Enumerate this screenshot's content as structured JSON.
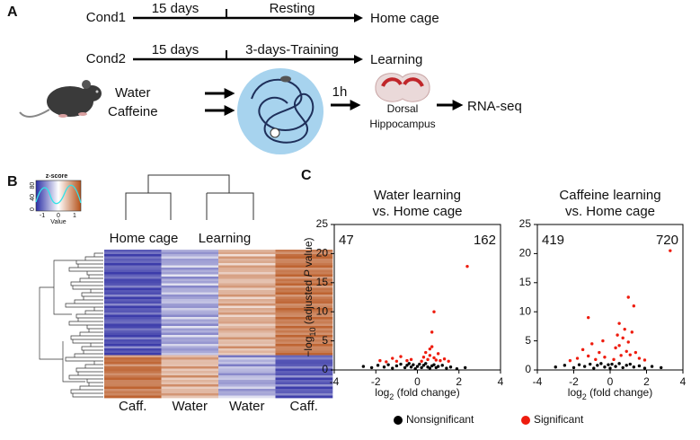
{
  "panel_a": {
    "label": "A",
    "cond1": "Cond1",
    "cond1_days": "15 days",
    "cond1_phase": "Resting",
    "cond1_outcome": "Home cage",
    "cond2": "Cond2",
    "cond2_days": "15 days",
    "cond2_phase": "3-days-Training",
    "cond2_outcome": "Learning",
    "water": "Water",
    "caffeine": "Caffeine",
    "delay": "1h",
    "region": [
      "Dorsal",
      "Hippocampus"
    ],
    "assay": "RNA-seq"
  },
  "panel_b": {
    "label": "B",
    "key_title": "z-score",
    "key_xlabel": "Value",
    "key_xticks": [
      -1,
      0,
      1
    ],
    "key_yticks": [
      0,
      40,
      80
    ],
    "groups": [
      "Home cage",
      "Learning"
    ],
    "columns": [
      "Caff.",
      "Water",
      "Water",
      "Caff."
    ]
  },
  "panel_c": {
    "label": "C",
    "legend": [
      "Nonsignificant",
      "Significant"
    ]
  },
  "chart_data": [
    {
      "type": "scatter",
      "title": [
        "Water learning",
        "vs. Home cage"
      ],
      "ylabel": [
        "−log",
        "10",
        " (adjusted ",
        "P",
        " value)"
      ],
      "xlabel": [
        "log",
        "2",
        " (fold change)"
      ],
      "annotations": [
        47,
        162
      ],
      "xlim": [
        -4,
        4
      ],
      "xticks": [
        -4,
        -2,
        0,
        2,
        4
      ],
      "ylim": [
        0,
        25
      ],
      "yticks": [
        0,
        5,
        10,
        15,
        20,
        25
      ],
      "series": [
        {
          "name": "Nonsignificant",
          "color": "#000000",
          "x": [
            -2.6,
            -2.2,
            -1.9,
            -1.6,
            -1.4,
            -1.2,
            -1.0,
            -0.8,
            -0.6,
            -0.5,
            -0.4,
            -0.3,
            -0.2,
            -0.1,
            0,
            0.1,
            0.2,
            0.3,
            0.4,
            0.5,
            0.6,
            0.7,
            0.8,
            0.9,
            1.0,
            1.2,
            1.4,
            1.6,
            1.9,
            2.3
          ],
          "values": [
            0.6,
            0.4,
            0.8,
            0.5,
            0.9,
            0.3,
            0.7,
            1.0,
            0.4,
            0.8,
            1.1,
            0.5,
            0.9,
            0.2,
            0.6,
            1.0,
            0.4,
            0.8,
            1.1,
            0.5,
            0.3,
            0.7,
            0.9,
            0.4,
            0.6,
            0.8,
            0.3,
            0.5,
            0.2,
            0.4
          ]
        },
        {
          "name": "Significant",
          "color": "#ee1c0e",
          "x": [
            -1.8,
            -1.5,
            -1.2,
            -1.0,
            -0.8,
            -0.5,
            -0.3,
            0.2,
            0.3,
            0.4,
            0.5,
            0.6,
            0.6,
            0.7,
            0.8,
            0.9,
            1.0,
            1.1,
            1.3,
            1.5,
            0.7,
            0.8,
            2.4
          ],
          "values": [
            1.6,
            1.4,
            2.0,
            1.5,
            2.3,
            1.6,
            1.8,
            1.5,
            2.2,
            3.0,
            1.8,
            3.6,
            2.5,
            4.0,
            2.1,
            1.7,
            2.8,
            1.6,
            1.9,
            1.5,
            6.5,
            10.0,
            17.8
          ]
        }
      ]
    },
    {
      "type": "scatter",
      "title": [
        "Caffeine learning",
        "vs. Home cage"
      ],
      "xlabel": [
        "log",
        "2",
        " (fold change)"
      ],
      "annotations": [
        419,
        720
      ],
      "xlim": [
        -4,
        4
      ],
      "xticks": [
        -4,
        -2,
        0,
        2,
        4
      ],
      "ylim": [
        0,
        25
      ],
      "yticks": [
        0,
        5,
        10,
        15,
        20,
        25
      ],
      "series": [
        {
          "name": "Nonsignificant",
          "color": "#000000",
          "x": [
            -3.0,
            -2.5,
            -2.0,
            -1.7,
            -1.4,
            -1.1,
            -0.9,
            -0.7,
            -0.5,
            -0.3,
            -0.1,
            0,
            0.1,
            0.3,
            0.5,
            0.7,
            0.9,
            1.1,
            1.3,
            1.6,
            1.9,
            2.3,
            2.8
          ],
          "values": [
            0.5,
            0.8,
            0.4,
            0.9,
            0.6,
            1.0,
            0.3,
            0.8,
            1.1,
            0.5,
            0.9,
            0.3,
            1.0,
            0.6,
            1.1,
            0.4,
            0.8,
            1.0,
            0.5,
            0.7,
            0.3,
            0.6,
            0.4
          ]
        },
        {
          "name": "Significant",
          "color": "#ee1c0e",
          "x": [
            -2.2,
            -1.8,
            -1.5,
            -1.2,
            -1.0,
            -0.8,
            -0.6,
            -0.4,
            -0.3,
            0.2,
            0.3,
            0.4,
            0.5,
            0.6,
            0.7,
            0.8,
            0.9,
            1.0,
            1.1,
            1.2,
            1.4,
            1.6,
            1.9,
            -1.2,
            0.5,
            1.0,
            1.3,
            3.3
          ],
          "values": [
            1.6,
            2.0,
            3.5,
            2.4,
            4.5,
            1.8,
            3.0,
            5.0,
            2.2,
            1.8,
            3.8,
            6.0,
            4.2,
            2.5,
            5.5,
            7.0,
            3.2,
            4.8,
            2.6,
            6.5,
            3.0,
            2.0,
            1.7,
            9.0,
            8.0,
            12.5,
            11.0,
            20.5
          ]
        }
      ]
    }
  ]
}
